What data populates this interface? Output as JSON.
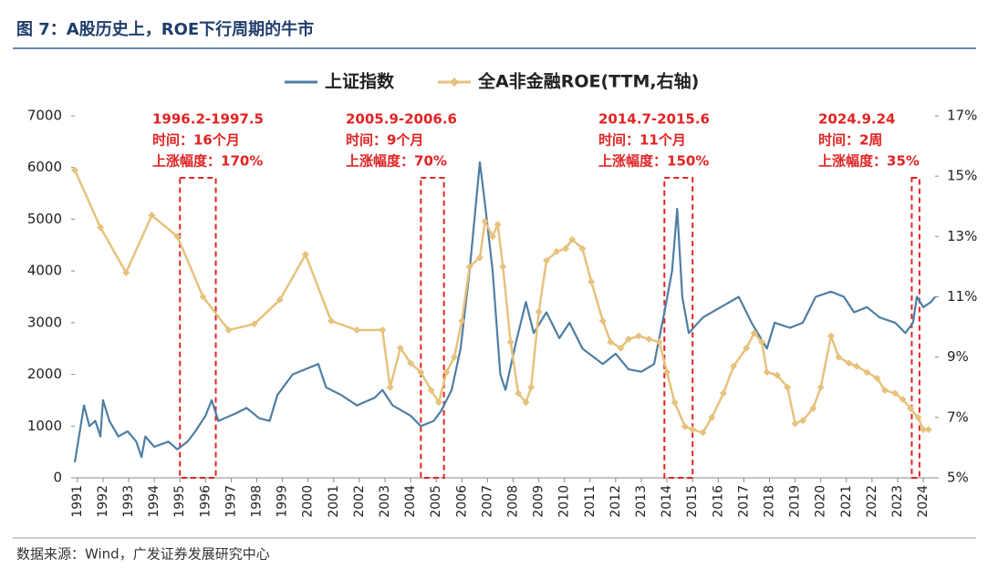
{
  "title": "图 7：A股历史上，ROE下行周期的牛市",
  "source": "数据来源：Wind，广发证券发展研究中心",
  "chart_data": {
    "type": "line",
    "xlim": [
      1990.9,
      2024.46
    ],
    "xticks": [
      1991,
      1992,
      1993,
      1994,
      1995,
      1996,
      1997,
      1998,
      1999,
      2000,
      2001,
      2002,
      2003,
      2004,
      2005,
      2006,
      2007,
      2008,
      2009,
      2010,
      2011,
      2012,
      2013,
      2014,
      2015,
      2016,
      2017,
      2018,
      2019,
      2020,
      2021,
      2022,
      2023,
      2024
    ],
    "ylim": [
      0,
      7000
    ],
    "yticks": [
      0,
      1000,
      2000,
      3000,
      4000,
      5000,
      6000,
      7000
    ],
    "y2lim": [
      5,
      17
    ],
    "y2ticks": [
      {
        "value": 5,
        "label": "5%"
      },
      {
        "value": 7,
        "label": "7%"
      },
      {
        "value": 9,
        "label": "9%"
      },
      {
        "value": 11,
        "label": "11%"
      },
      {
        "value": 13,
        "label": "13%"
      },
      {
        "value": 15,
        "label": "15%"
      },
      {
        "value": 17,
        "label": "17%"
      }
    ],
    "legend": "top",
    "series": [
      {
        "name": "上证指数",
        "color": "#4f7ea3",
        "x": [
          1990.9,
          1991.26,
          1991.47,
          1991.7,
          1991.9,
          1992.0,
          1992.25,
          1992.6,
          1992.96,
          1993.3,
          1993.5,
          1993.65,
          1994.0,
          1994.55,
          1994.9,
          1995.3,
          1995.6,
          1996.0,
          1996.24,
          1996.5,
          1997.2,
          1997.6,
          1998.1,
          1998.5,
          1998.8,
          1999.4,
          1999.9,
          2000.4,
          2000.7,
          2001.3,
          2001.9,
          2002.6,
          2002.9,
          2003.3,
          2004.0,
          2004.4,
          2004.9,
          2005.2,
          2005.6,
          2005.95,
          2006.3,
          2006.7,
          2006.9,
          2007.2,
          2007.5,
          2007.7,
          2008.1,
          2008.5,
          2008.8,
          2009.3,
          2009.8,
          2010.2,
          2010.7,
          2011.5,
          2012.0,
          2012.5,
          2013.0,
          2013.5,
          2013.9,
          2014.2,
          2014.4,
          2014.6,
          2014.85,
          2015.4,
          2016.1,
          2016.8,
          2017.3,
          2017.9,
          2018.2,
          2018.8,
          2019.3,
          2019.8,
          2020.4,
          2020.9,
          2021.3,
          2021.8,
          2022.3,
          2022.9,
          2023.3,
          2023.6,
          2023.75,
          2024.0,
          2024.3,
          2024.46
        ],
        "values": [
          300,
          1400,
          1000,
          1100,
          800,
          1500,
          1100,
          800,
          900,
          700,
          400,
          800,
          600,
          700,
          550,
          700,
          900,
          1200,
          1500,
          1100,
          1250,
          1350,
          1150,
          1100,
          1600,
          2000,
          2100,
          2200,
          1750,
          1600,
          1400,
          1550,
          1700,
          1400,
          1200,
          1000,
          1100,
          1300,
          1700,
          2500,
          4000,
          6100,
          5300,
          4000,
          2000,
          1700,
          2600,
          3400,
          2800,
          3200,
          2700,
          3000,
          2500,
          2200,
          2400,
          2100,
          2050,
          2200,
          3200,
          4000,
          5200,
          3500,
          2800,
          3100,
          3300,
          3500,
          3000,
          2500,
          3000,
          2900,
          3000,
          3500,
          3600,
          3500,
          3200,
          3300,
          3100,
          3000,
          2800,
          3000,
          3500,
          3300,
          3400,
          3500
        ]
      },
      {
        "name": "全A非金融ROE(TTM,右轴)",
        "color": "#e6c27d",
        "axis": "y2",
        "x": [
          1990.9,
          1991.9,
          1992.9,
          1993.9,
          1994.9,
          1995.9,
          1996.9,
          1997.9,
          1998.9,
          1999.9,
          2000.9,
          2001.9,
          2002.9,
          2003.2,
          2003.6,
          2004.0,
          2004.4,
          2004.8,
          2005.1,
          2005.4,
          2005.7,
          2006.0,
          2006.3,
          2006.7,
          2006.9,
          2007.2,
          2007.4,
          2007.6,
          2007.9,
          2008.2,
          2008.5,
          2008.7,
          2009.0,
          2009.3,
          2009.7,
          2010.05,
          2010.3,
          2010.7,
          2011.05,
          2011.5,
          2011.8,
          2012.2,
          2012.5,
          2012.9,
          2013.3,
          2013.7,
          2014.0,
          2014.3,
          2014.7,
          2015.0,
          2015.4,
          2015.75,
          2016.2,
          2016.6,
          2017.1,
          2017.4,
          2017.7,
          2017.9,
          2018.3,
          2018.7,
          2019.0,
          2019.3,
          2019.7,
          2020.0,
          2020.4,
          2020.7,
          2021.1,
          2021.4,
          2021.8,
          2022.2,
          2022.5,
          2022.9,
          2023.2,
          2023.5,
          2023.8,
          2024.0,
          2024.2
        ],
        "values": [
          15.2,
          13.3,
          11.8,
          13.7,
          13.0,
          11.0,
          9.9,
          10.1,
          10.9,
          12.4,
          10.2,
          9.9,
          9.9,
          8.0,
          9.3,
          8.8,
          8.5,
          7.9,
          7.5,
          8.5,
          9.0,
          10.2,
          12.0,
          12.3,
          13.5,
          13.0,
          13.4,
          12.0,
          9.5,
          7.8,
          7.5,
          8.0,
          10.5,
          12.2,
          12.5,
          12.6,
          12.9,
          12.6,
          11.5,
          10.2,
          9.5,
          9.3,
          9.6,
          9.7,
          9.6,
          9.5,
          8.5,
          7.5,
          6.7,
          6.6,
          6.5,
          7.0,
          7.8,
          8.7,
          9.3,
          9.8,
          9.5,
          8.5,
          8.4,
          8.0,
          6.8,
          6.9,
          7.3,
          8.0,
          9.7,
          9.0,
          8.8,
          8.7,
          8.5,
          8.3,
          7.9,
          7.8,
          7.6,
          7.3,
          7.0,
          6.6,
          6.6
        ]
      }
    ],
    "annotations": [
      {
        "lines": [
          "1996.2-1997.5",
          "时间：16个月",
          "上涨幅度：170%"
        ],
        "span": [
          1995.0,
          1996.4
        ]
      },
      {
        "lines": [
          "2005.9-2006.6",
          "时间：9个月",
          "上涨幅度：70%"
        ],
        "span": [
          2004.4,
          2005.3
        ]
      },
      {
        "lines": [
          "2014.7-2015.6",
          "时间：11个月",
          "上涨幅度：150%"
        ],
        "span": [
          2013.9,
          2015.0
        ]
      },
      {
        "lines": [
          "2024.9.24",
          "时间：2周",
          "上涨幅度：35%"
        ],
        "span": [
          2023.55,
          2023.85
        ]
      }
    ]
  }
}
